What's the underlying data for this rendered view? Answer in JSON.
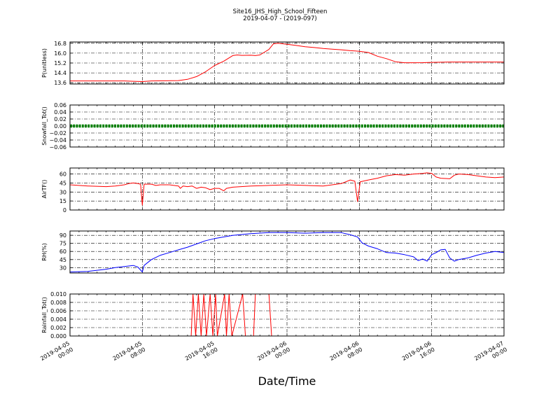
{
  "figure": {
    "title_line1": "Site16_JHS_High_School_Fifteen",
    "title_line2": "2019-04-07 - (2019-097)",
    "xlabel": "Date/Time",
    "x_tick_labels": [
      [
        "2019-04-05",
        "00:00"
      ],
      [
        "2019-04-05",
        "08:00"
      ],
      [
        "2019-04-05",
        "16:00"
      ],
      [
        "2019-04-06",
        "00:00"
      ],
      [
        "2019-04-06",
        "08:00"
      ],
      [
        "2019-04-06",
        "16:00"
      ],
      [
        "2019-04-07",
        "00:00"
      ]
    ]
  },
  "chart_data": [
    {
      "type": "line",
      "ylabel": "P(unitless)",
      "ylim": [
        13.5,
        16.9
      ],
      "yticks": [
        13.6,
        14.4,
        15.2,
        16.0,
        16.8
      ],
      "ytick_labels": [
        "13.6",
        "14.4",
        "15.2",
        "16.0",
        "16.8"
      ],
      "xlim": [
        0,
        48
      ],
      "grid": true,
      "series": [
        {
          "color": "#ff0000",
          "points": [
            [
              0,
              13.75
            ],
            [
              6,
              13.75
            ],
            [
              7,
              13.72
            ],
            [
              8,
              13.7
            ],
            [
              9,
              13.75
            ],
            [
              12,
              13.78
            ],
            [
              13,
              13.88
            ],
            [
              14,
              14.1
            ],
            [
              15,
              14.5
            ],
            [
              16,
              15.0
            ],
            [
              17,
              15.35
            ],
            [
              18,
              15.8
            ],
            [
              18.5,
              15.85
            ],
            [
              19,
              15.82
            ],
            [
              20,
              15.83
            ],
            [
              20.5,
              15.8
            ],
            [
              21,
              15.85
            ],
            [
              22,
              16.3
            ],
            [
              22.5,
              16.75
            ],
            [
              23,
              16.8
            ],
            [
              24,
              16.72
            ],
            [
              25,
              16.62
            ],
            [
              26,
              16.52
            ],
            [
              27,
              16.45
            ],
            [
              28,
              16.38
            ],
            [
              29,
              16.32
            ],
            [
              30,
              16.27
            ],
            [
              31,
              16.2
            ],
            [
              32,
              16.15
            ],
            [
              33,
              16.05
            ],
            [
              34,
              15.75
            ],
            [
              35,
              15.55
            ],
            [
              36,
              15.3
            ],
            [
              37,
              15.22
            ],
            [
              38,
              15.22
            ],
            [
              39,
              15.23
            ],
            [
              40,
              15.25
            ],
            [
              42,
              15.28
            ],
            [
              44,
              15.28
            ],
            [
              46,
              15.28
            ],
            [
              48,
              15.28
            ]
          ]
        }
      ]
    },
    {
      "type": "line",
      "ylabel": "Snowfall_Tot()",
      "ylim": [
        -0.06,
        0.06
      ],
      "yticks": [
        -0.06,
        -0.04,
        -0.02,
        0.0,
        0.02,
        0.04,
        0.06
      ],
      "ytick_labels": [
        "−0.06",
        "−0.04",
        "−0.02",
        "0.00",
        "0.02",
        "0.04",
        "0.06"
      ],
      "xlim": [
        0,
        48
      ],
      "grid": true,
      "series": [
        {
          "color": "#008000",
          "marker": "dots",
          "points": [
            [
              0,
              0
            ],
            [
              48,
              0
            ]
          ]
        }
      ]
    },
    {
      "type": "line",
      "ylabel": "AirTF()",
      "ylim": [
        0,
        70
      ],
      "yticks": [
        0,
        15,
        30,
        45,
        60
      ],
      "ytick_labels": [
        "0",
        "15",
        "30",
        "45",
        "60"
      ],
      "xlim": [
        0,
        48
      ],
      "grid": true,
      "series": [
        {
          "color": "#ff0000",
          "points": [
            [
              0,
              42
            ],
            [
              2,
              40
            ],
            [
              4,
              39
            ],
            [
              5,
              40
            ],
            [
              6,
              42
            ],
            [
              6.5,
              44
            ],
            [
              7,
              45
            ],
            [
              7.5,
              44
            ],
            [
              7.8,
              43
            ],
            [
              8,
              8
            ],
            [
              8.2,
              43
            ],
            [
              9,
              43
            ],
            [
              9.5,
              41
            ],
            [
              10,
              42
            ],
            [
              11,
              42
            ],
            [
              12,
              40
            ],
            [
              12.2,
              36
            ],
            [
              12.5,
              40
            ],
            [
              13,
              39
            ],
            [
              13.5,
              40
            ],
            [
              14,
              36
            ],
            [
              14.5,
              38
            ],
            [
              15,
              37
            ],
            [
              15.5,
              34
            ],
            [
              16,
              36
            ],
            [
              16.5,
              36
            ],
            [
              17,
              32
            ],
            [
              17.3,
              36
            ],
            [
              18,
              38
            ],
            [
              20,
              40
            ],
            [
              22,
              41
            ],
            [
              24,
              42
            ],
            [
              26,
              41
            ],
            [
              28,
              40
            ],
            [
              29,
              42
            ],
            [
              30,
              44
            ],
            [
              31,
              50
            ],
            [
              31.5,
              48
            ],
            [
              31.8,
              14
            ],
            [
              32.1,
              47
            ],
            [
              33,
              50
            ],
            [
              34,
              53
            ],
            [
              35,
              57
            ],
            [
              36,
              59
            ],
            [
              37,
              58
            ],
            [
              38,
              60
            ],
            [
              39,
              61
            ],
            [
              39.5,
              62
            ],
            [
              40,
              61
            ],
            [
              40.5,
              55
            ],
            [
              41,
              53
            ],
            [
              42,
              52
            ],
            [
              42.5,
              58
            ],
            [
              43,
              60
            ],
            [
              44,
              59
            ],
            [
              45,
              57
            ],
            [
              46,
              55
            ],
            [
              47,
              54
            ],
            [
              48,
              55
            ]
          ]
        }
      ]
    },
    {
      "type": "line",
      "ylabel": "RH(%)",
      "ylim": [
        20,
        98
      ],
      "yticks": [
        30,
        45,
        60,
        75,
        90
      ],
      "ytick_labels": [
        "30",
        "45",
        "60",
        "75",
        "90"
      ],
      "xlim": [
        0,
        48
      ],
      "grid": true,
      "series": [
        {
          "color": "#0000ff",
          "points": [
            [
              0,
              22
            ],
            [
              2,
              23
            ],
            [
              4,
              27
            ],
            [
              5,
              30
            ],
            [
              6,
              32
            ],
            [
              7,
              34
            ],
            [
              7.5,
              31
            ],
            [
              8,
              22
            ],
            [
              8.2,
              34
            ],
            [
              9,
              45
            ],
            [
              10,
              53
            ],
            [
              11,
              58
            ],
            [
              12,
              63
            ],
            [
              13,
              68
            ],
            [
              14,
              74
            ],
            [
              15,
              80
            ],
            [
              16,
              84
            ],
            [
              17,
              87
            ],
            [
              18,
              90
            ],
            [
              20,
              93
            ],
            [
              22,
              95
            ],
            [
              24,
              95
            ],
            [
              26,
              94
            ],
            [
              28,
              95
            ],
            [
              30,
              95
            ],
            [
              31,
              91
            ],
            [
              31.8,
              87
            ],
            [
              32.3,
              76
            ],
            [
              33,
              70
            ],
            [
              34,
              65
            ],
            [
              35,
              58
            ],
            [
              36,
              57
            ],
            [
              37,
              54
            ],
            [
              38,
              50
            ],
            [
              38.5,
              43
            ],
            [
              39,
              46
            ],
            [
              39.5,
              42
            ],
            [
              40,
              54
            ],
            [
              40.5,
              58
            ],
            [
              41,
              63
            ],
            [
              41.5,
              64
            ],
            [
              42,
              48
            ],
            [
              42.5,
              42
            ],
            [
              43,
              45
            ],
            [
              44,
              48
            ],
            [
              45,
              53
            ],
            [
              46,
              57
            ],
            [
              47,
              60
            ],
            [
              48,
              58
            ]
          ]
        }
      ]
    },
    {
      "type": "line",
      "ylabel": "Rainfall_Tot()",
      "ylim": [
        0,
        0.01
      ],
      "yticks": [
        0,
        0.002,
        0.004,
        0.006,
        0.008,
        0.01
      ],
      "ytick_labels": [
        "0.000",
        "0.002",
        "0.004",
        "0.006",
        "0.008",
        "0.010"
      ],
      "xlim": [
        0,
        48
      ],
      "grid": true,
      "series": [
        {
          "color": "#ff0000",
          "points": [
            [
              0,
              0
            ],
            [
              13.4,
              0
            ],
            [
              13.6,
              0.01
            ],
            [
              13.9,
              0
            ],
            [
              14.2,
              0.01
            ],
            [
              14.5,
              0
            ],
            [
              14.8,
              0.01
            ],
            [
              15.1,
              0
            ],
            [
              15.5,
              0.01
            ],
            [
              15.8,
              0
            ],
            [
              16.1,
              0.01
            ],
            [
              16.3,
              0
            ],
            [
              17.1,
              0.01
            ],
            [
              17.3,
              0
            ],
            [
              17.6,
              0.01
            ],
            [
              17.9,
              0
            ],
            [
              19.1,
              0.01
            ],
            [
              19.4,
              0
            ],
            [
              20.3,
              0
            ],
            [
              20.5,
              0.01
            ],
            [
              22.0,
              0.01
            ],
            [
              22.3,
              0
            ],
            [
              48,
              0
            ]
          ]
        }
      ]
    }
  ]
}
